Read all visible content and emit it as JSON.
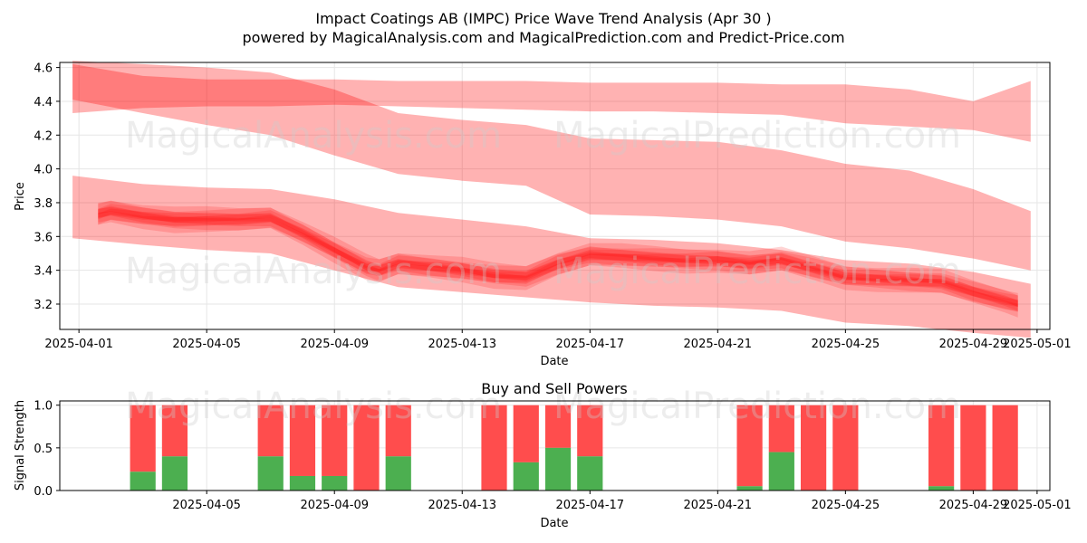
{
  "title_line1": "Impact Coatings AB (IMPC) Price Wave Trend Analysis (Apr 30 )",
  "title_line2": "powered by MagicalAnalysis.com and MagicalPrediction.com and Predict-Price.com",
  "watermarks": [
    "MagicalAnalysis.com",
    "MagicalPrediction.com"
  ],
  "colors": {
    "band": "#ff0000",
    "sell": "#ff4d4d",
    "buy": "#4caf50",
    "grid": "#e6e6e6"
  },
  "chart_data": [
    {
      "type": "area",
      "xlabel": "Date",
      "ylabel": "Price",
      "xlim": [
        -0.6,
        30.4
      ],
      "ylim": [
        3.05,
        4.63
      ],
      "x_tick_values": [
        0,
        4,
        8,
        12,
        16,
        20,
        24,
        28,
        30
      ],
      "x_tick_labels": [
        "2025-04-01",
        "2025-04-05",
        "2025-04-09",
        "2025-04-13",
        "2025-04-17",
        "2025-04-21",
        "2025-04-25",
        "2025-04-29",
        "2025-05-01"
      ],
      "y_ticks": [
        3.2,
        3.4,
        3.6,
        3.8,
        4.0,
        4.2,
        4.4,
        4.6
      ],
      "y_tick_labels": [
        "3.2",
        "3.4",
        "3.6",
        "3.8",
        "4.0",
        "4.2",
        "4.4",
        "4.6"
      ],
      "wide_bands": [
        {
          "name": "upper-wave",
          "x": [
            -0.2,
            2,
            4,
            6,
            8,
            10,
            12,
            14,
            16,
            18,
            20,
            22,
            24,
            26,
            28,
            29.8
          ],
          "upper": [
            4.64,
            4.62,
            4.6,
            4.57,
            4.47,
            4.33,
            4.29,
            4.26,
            4.18,
            4.17,
            4.16,
            4.11,
            4.03,
            3.99,
            3.88,
            3.75
          ],
          "lower": [
            4.41,
            4.33,
            4.26,
            4.2,
            4.08,
            3.97,
            3.93,
            3.9,
            3.73,
            3.72,
            3.7,
            3.66,
            3.57,
            3.53,
            3.47,
            3.4
          ]
        },
        {
          "name": "top-flat-wave",
          "x": [
            -0.2,
            2,
            4,
            6,
            8,
            10,
            12,
            14,
            16,
            18,
            20,
            22,
            24,
            26,
            28,
            29.8
          ],
          "upper": [
            4.62,
            4.55,
            4.53,
            4.53,
            4.53,
            4.52,
            4.52,
            4.52,
            4.51,
            4.51,
            4.51,
            4.5,
            4.5,
            4.47,
            4.4,
            4.52
          ],
          "lower": [
            4.33,
            4.36,
            4.37,
            4.37,
            4.38,
            4.37,
            4.36,
            4.35,
            4.34,
            4.34,
            4.33,
            4.32,
            4.27,
            4.25,
            4.23,
            4.16
          ]
        },
        {
          "name": "lower-wave",
          "x": [
            -0.2,
            2,
            4,
            6,
            8,
            10,
            12,
            14,
            16,
            18,
            20,
            22,
            24,
            26,
            28,
            29.8
          ],
          "upper": [
            3.96,
            3.91,
            3.89,
            3.88,
            3.82,
            3.74,
            3.7,
            3.66,
            3.59,
            3.58,
            3.56,
            3.52,
            3.46,
            3.44,
            3.39,
            3.32
          ],
          "lower": [
            3.59,
            3.55,
            3.52,
            3.5,
            3.4,
            3.3,
            3.27,
            3.24,
            3.21,
            3.19,
            3.18,
            3.16,
            3.09,
            3.07,
            3.03,
            3.0
          ]
        }
      ],
      "price_center": {
        "x": [
          0.6,
          1,
          2,
          3,
          4,
          5,
          6,
          7,
          8,
          9,
          9.4,
          10,
          11,
          12,
          13,
          14,
          15,
          16,
          17,
          18,
          19,
          20,
          21,
          22,
          23,
          24,
          25,
          26,
          27,
          28,
          29,
          29.4
        ],
        "y": [
          3.73,
          3.75,
          3.72,
          3.7,
          3.7,
          3.7,
          3.71,
          3.62,
          3.52,
          3.42,
          3.4,
          3.44,
          3.42,
          3.4,
          3.37,
          3.36,
          3.44,
          3.49,
          3.48,
          3.47,
          3.46,
          3.46,
          3.44,
          3.46,
          3.41,
          3.36,
          3.35,
          3.34,
          3.33,
          3.27,
          3.22,
          3.2
        ]
      }
    },
    {
      "type": "bar",
      "title": "Buy and Sell Powers",
      "xlabel": "Date",
      "ylabel": "Signal Strength",
      "xlim": [
        -0.6,
        30.4
      ],
      "ylim": [
        0,
        1.05
      ],
      "x_tick_values": [
        4,
        8,
        12,
        16,
        20,
        24,
        28,
        30
      ],
      "x_tick_labels": [
        "2025-04-05",
        "2025-04-09",
        "2025-04-13",
        "2025-04-17",
        "2025-04-21",
        "2025-04-25",
        "2025-04-29",
        "2025-05-01"
      ],
      "y_ticks": [
        0.0,
        0.5,
        1.0
      ],
      "y_tick_labels": [
        "0.0",
        "0.5",
        "1.0"
      ],
      "bars": [
        {
          "x": 2,
          "buy": 0.22
        },
        {
          "x": 3,
          "buy": 0.4
        },
        {
          "x": 6,
          "buy": 0.4
        },
        {
          "x": 7,
          "buy": 0.17
        },
        {
          "x": 8,
          "buy": 0.17
        },
        {
          "x": 9,
          "buy": 0.0
        },
        {
          "x": 10,
          "buy": 0.4
        },
        {
          "x": 13,
          "buy": 0.0
        },
        {
          "x": 14,
          "buy": 0.33
        },
        {
          "x": 15,
          "buy": 0.5
        },
        {
          "x": 16,
          "buy": 0.4
        },
        {
          "x": 21,
          "buy": 0.05
        },
        {
          "x": 22,
          "buy": 0.45
        },
        {
          "x": 23,
          "buy": 0.0
        },
        {
          "x": 24,
          "buy": 0.0
        },
        {
          "x": 27,
          "buy": 0.05
        },
        {
          "x": 28,
          "buy": 0.0
        },
        {
          "x": 29,
          "buy": 0.0
        }
      ]
    }
  ]
}
